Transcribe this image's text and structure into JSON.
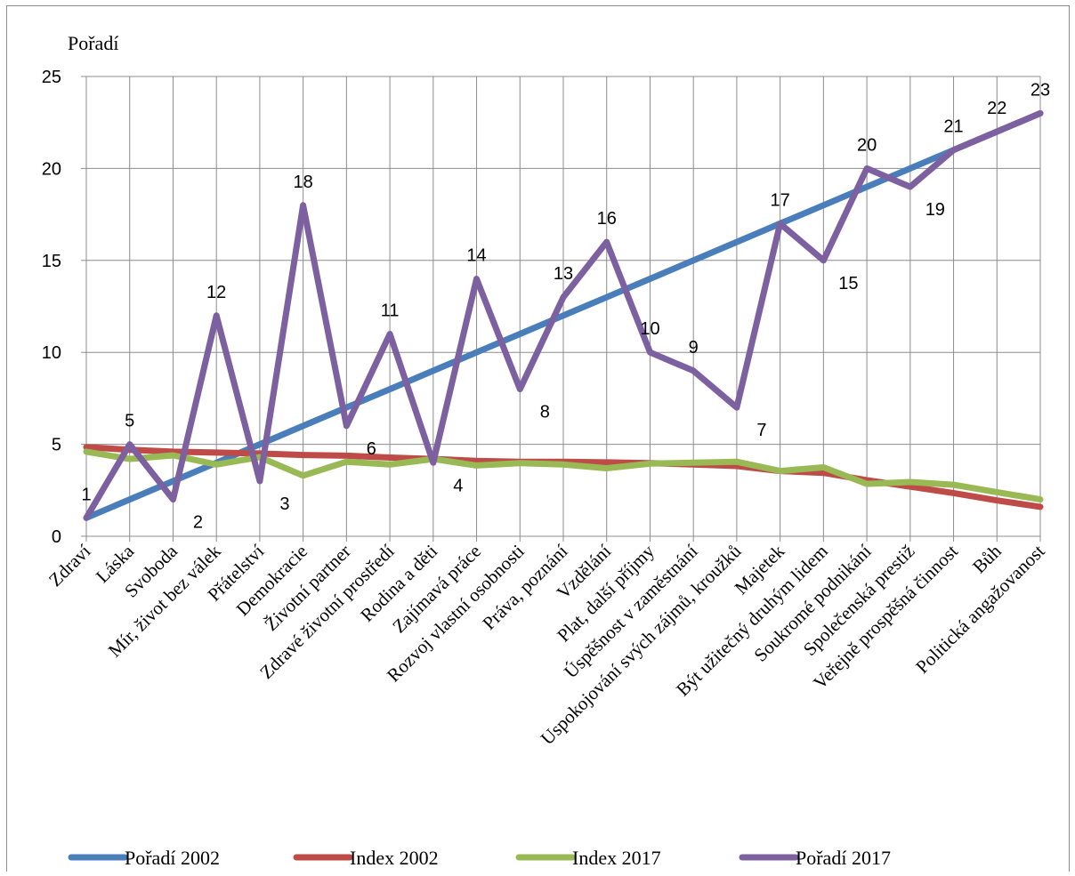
{
  "chart_data": {
    "type": "line",
    "ylabel": "Pořadí",
    "ylim": [
      0,
      25
    ],
    "yticks": [
      0,
      5,
      10,
      15,
      20,
      25
    ],
    "grid": true,
    "legend_position": "bottom",
    "categories": [
      "Zdraví",
      "Láska",
      "Svoboda",
      "Mír, život bez válek",
      "Přátelství",
      "Demokracie",
      "Životní partner",
      "Zdravé životní prostředí",
      "Rodina a děti",
      "Zajímavá práce",
      "Rozvoj vlastní osobnosti",
      "Práva, poznání",
      "Vzdělání",
      "Plat, další příjmy",
      "Úspěšnost v zaměstnání",
      "Uspokojování svých zájmů, kroužků",
      "Majetek",
      "Být užitečný druhým lidem",
      "Soukromé podnikání",
      "Společenská prestiž",
      "Veřejně prospěšná činnost",
      "Bůh",
      "Politická angažovanost"
    ],
    "series": [
      {
        "name": "Pořadí 2002",
        "color": "#4a7ebb",
        "values": [
          1,
          2,
          3,
          4,
          5,
          6,
          7,
          8,
          9,
          10,
          11,
          12,
          13,
          14,
          15,
          16,
          17,
          18,
          19,
          20,
          21,
          22,
          23
        ]
      },
      {
        "name": "Index 2002",
        "color": "#be4b48",
        "values": [
          4.85,
          4.7,
          4.6,
          4.55,
          4.5,
          4.42,
          4.38,
          4.28,
          4.2,
          4.1,
          4.05,
          4.05,
          4.02,
          3.98,
          3.9,
          3.82,
          3.55,
          3.45,
          3.05,
          2.7,
          2.35,
          1.95,
          1.6
        ]
      },
      {
        "name": "Index 2017",
        "color": "#98b954",
        "values": [
          4.6,
          4.2,
          4.4,
          3.9,
          4.3,
          3.3,
          4.05,
          3.9,
          4.2,
          3.85,
          3.98,
          3.9,
          3.7,
          3.95,
          4.0,
          4.05,
          3.55,
          3.75,
          2.85,
          2.95,
          2.8,
          2.4,
          2.0
        ]
      },
      {
        "name": "Pořadí 2017",
        "color": "#7d60a0",
        "values": [
          1,
          5,
          2,
          12,
          3,
          18,
          6,
          11,
          4,
          14,
          8,
          13,
          16,
          10,
          9,
          7,
          17,
          15,
          20,
          19,
          21,
          22,
          23
        ],
        "data_labels": [
          "1",
          "5",
          "2",
          "12",
          "3",
          "18",
          "6",
          "11",
          "4",
          "14",
          "8",
          "13",
          "16",
          "10",
          "9",
          "7",
          "17",
          "15",
          "20",
          "19",
          "21",
          "22",
          "23"
        ]
      }
    ]
  }
}
